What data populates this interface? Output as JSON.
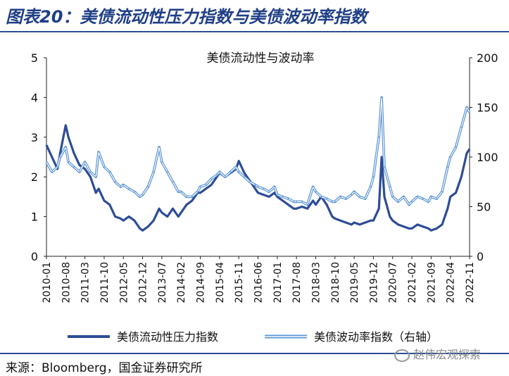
{
  "figure_title": "图表20：美债流动性压力指数与美债波动率指数",
  "source": "来源：Bloomberg，国金证券研究所",
  "watermark": "赵伟宏观探索",
  "colors": {
    "dark_series": "#2e4d96",
    "light_series": "#5b95d2",
    "title": "#1f3f86"
  },
  "chart_data": {
    "type": "line",
    "title": "美债流动性与波动率",
    "x_ticks": [
      "2010-01",
      "2010-08",
      "2011-03",
      "2011-10",
      "2012-05",
      "2012-12",
      "2013-07",
      "2014-02",
      "2014-09",
      "2015-04",
      "2015-11",
      "2016-06",
      "2017-01",
      "2017-08",
      "2018-03",
      "2018-10",
      "2019-05",
      "2019-12",
      "2020-07",
      "2021-02",
      "2021-09",
      "2022-04",
      "2022-11"
    ],
    "y_left": {
      "ticks": [
        "0",
        "1",
        "2",
        "3",
        "4",
        "5"
      ],
      "range": [
        0,
        5
      ]
    },
    "y_right": {
      "ticks": [
        "0",
        "50",
        "100",
        "150",
        "200"
      ],
      "range": [
        0,
        200
      ]
    },
    "grid": false,
    "legend_position": "bottom",
    "series": [
      {
        "name": "美债流动性压力指数",
        "axis": "left",
        "x": [
          "2010-01",
          "2010-03",
          "2010-05",
          "2010-06",
          "2010-08",
          "2010-09",
          "2010-11",
          "2011-01",
          "2011-03",
          "2011-05",
          "2011-07",
          "2011-08",
          "2011-10",
          "2011-12",
          "2012-02",
          "2012-04",
          "2012-05",
          "2012-07",
          "2012-09",
          "2012-11",
          "2012-12",
          "2013-02",
          "2013-04",
          "2013-06",
          "2013-07",
          "2013-09",
          "2013-11",
          "2014-01",
          "2014-02",
          "2014-04",
          "2014-06",
          "2014-08",
          "2014-09",
          "2014-11",
          "2015-01",
          "2015-03",
          "2015-04",
          "2015-06",
          "2015-08",
          "2015-10",
          "2015-11",
          "2016-01",
          "2016-03",
          "2016-05",
          "2016-06",
          "2016-08",
          "2016-10",
          "2016-12",
          "2017-01",
          "2017-03",
          "2017-05",
          "2017-07",
          "2017-08",
          "2017-10",
          "2017-12",
          "2018-02",
          "2018-03",
          "2018-05",
          "2018-07",
          "2018-09",
          "2018-10",
          "2018-12",
          "2019-02",
          "2019-04",
          "2019-05",
          "2019-07",
          "2019-09",
          "2019-11",
          "2019-12",
          "2020-02",
          "2020-03",
          "2020-04",
          "2020-06",
          "2020-07",
          "2020-09",
          "2020-11",
          "2021-01",
          "2021-02",
          "2021-04",
          "2021-06",
          "2021-08",
          "2021-09",
          "2021-11",
          "2022-01",
          "2022-03",
          "2022-04",
          "2022-06",
          "2022-08",
          "2022-10",
          "2022-11"
        ],
        "values": [
          2.8,
          2.5,
          2.2,
          2.6,
          3.3,
          3.0,
          2.6,
          2.3,
          2.2,
          2.0,
          1.6,
          1.7,
          1.4,
          1.3,
          1.0,
          0.95,
          0.9,
          1.0,
          0.9,
          0.7,
          0.65,
          0.75,
          0.9,
          1.2,
          1.1,
          1.0,
          1.2,
          1.0,
          1.1,
          1.3,
          1.4,
          1.6,
          1.6,
          1.7,
          1.8,
          2.0,
          2.1,
          2.0,
          2.1,
          2.2,
          2.4,
          2.1,
          1.9,
          1.7,
          1.6,
          1.55,
          1.5,
          1.6,
          1.5,
          1.4,
          1.3,
          1.2,
          1.2,
          1.25,
          1.2,
          1.4,
          1.3,
          1.5,
          1.3,
          1.0,
          0.95,
          0.9,
          0.85,
          0.8,
          0.85,
          0.8,
          0.85,
          0.9,
          0.9,
          1.2,
          2.5,
          1.5,
          1.0,
          0.9,
          0.8,
          0.75,
          0.7,
          0.7,
          0.8,
          0.75,
          0.7,
          0.65,
          0.7,
          0.8,
          1.2,
          1.5,
          1.6,
          2.0,
          2.6,
          2.7
        ]
      },
      {
        "name": "美债波动率指数（右轴）",
        "axis": "right",
        "x": [
          "2010-01",
          "2010-03",
          "2010-05",
          "2010-06",
          "2010-08",
          "2010-09",
          "2010-11",
          "2011-01",
          "2011-03",
          "2011-05",
          "2011-07",
          "2011-08",
          "2011-10",
          "2011-12",
          "2012-02",
          "2012-04",
          "2012-05",
          "2012-07",
          "2012-09",
          "2012-11",
          "2012-12",
          "2013-02",
          "2013-04",
          "2013-06",
          "2013-07",
          "2013-09",
          "2013-11",
          "2014-01",
          "2014-02",
          "2014-04",
          "2014-06",
          "2014-08",
          "2014-09",
          "2014-11",
          "2015-01",
          "2015-03",
          "2015-04",
          "2015-06",
          "2015-08",
          "2015-10",
          "2015-11",
          "2016-01",
          "2016-03",
          "2016-05",
          "2016-06",
          "2016-08",
          "2016-10",
          "2016-12",
          "2017-01",
          "2017-03",
          "2017-05",
          "2017-07",
          "2017-08",
          "2017-10",
          "2017-12",
          "2018-02",
          "2018-03",
          "2018-05",
          "2018-07",
          "2018-09",
          "2018-10",
          "2018-12",
          "2019-02",
          "2019-04",
          "2019-05",
          "2019-07",
          "2019-09",
          "2019-11",
          "2019-12",
          "2020-02",
          "2020-03",
          "2020-04",
          "2020-06",
          "2020-07",
          "2020-09",
          "2020-11",
          "2021-01",
          "2021-02",
          "2021-04",
          "2021-06",
          "2021-08",
          "2021-09",
          "2021-11",
          "2022-01",
          "2022-03",
          "2022-04",
          "2022-06",
          "2022-08",
          "2022-10",
          "2022-11"
        ],
        "values": [
          95,
          85,
          90,
          100,
          110,
          95,
          90,
          85,
          95,
          85,
          80,
          105,
          90,
          85,
          75,
          70,
          72,
          68,
          65,
          60,
          62,
          70,
          85,
          110,
          95,
          85,
          75,
          65,
          65,
          60,
          60,
          65,
          70,
          72,
          78,
          82,
          85,
          80,
          85,
          90,
          85,
          80,
          75,
          72,
          70,
          68,
          65,
          70,
          62,
          60,
          58,
          55,
          55,
          55,
          52,
          70,
          65,
          60,
          58,
          55,
          55,
          60,
          58,
          62,
          65,
          60,
          58,
          70,
          80,
          120,
          160,
          90,
          70,
          60,
          55,
          60,
          52,
          55,
          60,
          58,
          55,
          60,
          58,
          65,
          90,
          100,
          110,
          130,
          150,
          145
        ]
      }
    ]
  }
}
